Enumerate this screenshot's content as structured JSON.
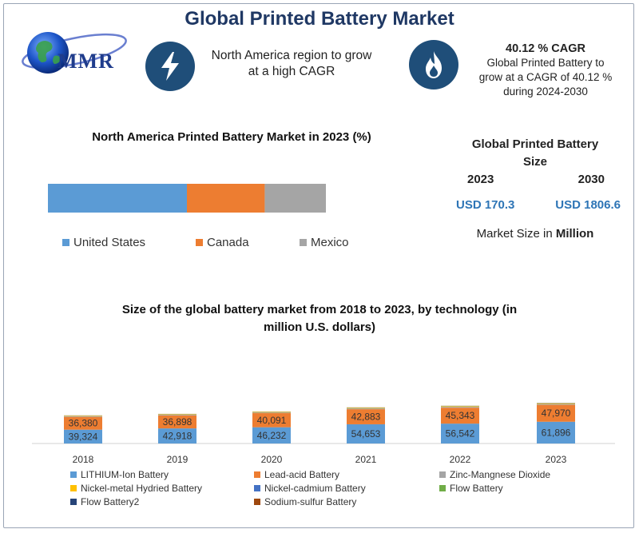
{
  "title": "Global Printed Battery Market",
  "logo": {
    "text": "MMR"
  },
  "highlight": {
    "text_line1": "North America region to grow",
    "text_line2": "at a high CAGR"
  },
  "cagr": {
    "title": "40.12 % CAGR",
    "line1": "Global Printed Battery to",
    "line2": "grow at a CAGR of 40.12 %",
    "line3": "during 2024-2030"
  },
  "market_size": {
    "title_line1": "Global Printed Battery",
    "title_line2": "Size",
    "year_start": "2023",
    "year_end": "2030",
    "value_start": "USD 170.3",
    "value_end": "USD 1806.6",
    "unit_prefix": "Market Size in ",
    "unit_bold": "Million"
  },
  "colors": {
    "title": "#1f3864",
    "icon_bg": "#1f4e79",
    "us": "#5b9bd5",
    "canada": "#ed7d31",
    "mexico": "#a5a5a5",
    "lithium": "#5b9bd5",
    "lead_acid": "#ed7d31",
    "zinc": "#a5a5a5",
    "nimh": "#ffc000",
    "nicd": "#4472c4",
    "flow": "#70ad47",
    "flow2": "#264478",
    "sodium": "#9e480e"
  },
  "chart_data": [
    {
      "type": "bar",
      "orientation": "horizontal-stacked",
      "title": "North America Printed Battery Market in 2023 (%)",
      "series": [
        {
          "name": "United States",
          "values": [
            50
          ]
        },
        {
          "name": "Canada",
          "values": [
            28
          ]
        },
        {
          "name": "Mexico",
          "values": [
            22
          ]
        }
      ],
      "legend": "bottom"
    },
    {
      "type": "bar",
      "orientation": "vertical-stacked",
      "title_line1": "Size of the global battery market from 2018 to 2023, by technology (in",
      "title_line2": "million U.S. dollars)",
      "categories": [
        "2018",
        "2019",
        "2020",
        "2021",
        "2022",
        "2023"
      ],
      "series": [
        {
          "name": "LITHIUM-Ion Battery",
          "values": [
            39324,
            42918,
            46232,
            54653,
            56542,
            61896
          ]
        },
        {
          "name": "Lead-acid Battery",
          "values": [
            36380,
            36898,
            40091,
            42883,
            45343,
            47970
          ]
        },
        {
          "name": "Zinc-Mangnese Dioxide",
          "values": [
            1800,
            1900,
            2000,
            2300,
            2400,
            2600
          ]
        },
        {
          "name": "Nickel-metal Hydried Battery",
          "values": [
            1500,
            1600,
            1600,
            1700,
            1800,
            1900
          ]
        },
        {
          "name": "Nickel-cadmium Battery",
          "values": [
            400,
            400,
            400,
            400,
            400,
            400
          ]
        },
        {
          "name": "Flow Battery",
          "values": [
            200,
            200,
            250,
            300,
            350,
            400
          ]
        },
        {
          "name": "Flow Battery2",
          "values": [
            150,
            150,
            150,
            200,
            200,
            200
          ]
        },
        {
          "name": "Sodium-sulfur Battery",
          "values": [
            200,
            200,
            200,
            250,
            250,
            250
          ]
        }
      ],
      "data_labels": [
        "LITHIUM-Ion Battery",
        "Lead-acid Battery"
      ],
      "ylim": [
        0,
        125000
      ],
      "legend": "bottom",
      "grid": false
    }
  ]
}
